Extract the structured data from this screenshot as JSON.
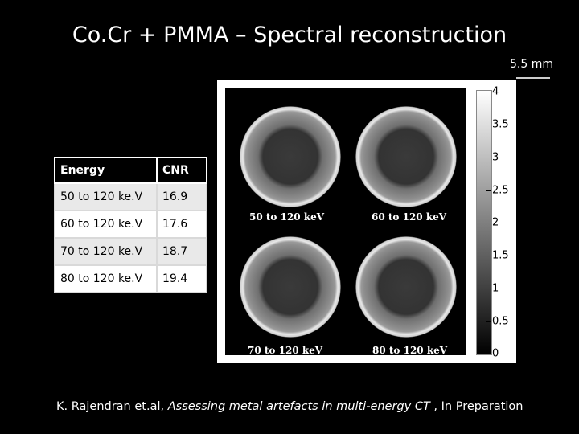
{
  "slide": {
    "title": "Co.Cr + PMMA – Spectral reconstruction",
    "scale_label": "5.5 mm"
  },
  "figure": {
    "labels": [
      "50 to 120 keV",
      "60 to 120 keV",
      "70 to 120 keV",
      "80 to 120 keV"
    ],
    "colorbar_ticks": [
      "4",
      "3.5",
      "3",
      "2.5",
      "2",
      "1.5",
      "1",
      "0.5",
      "0"
    ]
  },
  "table": {
    "headers": [
      "Energy",
      "CNR"
    ],
    "rows": [
      {
        "energy": "50 to 120 ke.V",
        "cnr": "16.9"
      },
      {
        "energy": "60 to 120 ke.V",
        "cnr": "17.6"
      },
      {
        "energy": "70 to 120 ke.V",
        "cnr": "18.7"
      },
      {
        "energy": "80 to 120 ke.V",
        "cnr": "19.4"
      }
    ]
  },
  "citation": {
    "authors": "K. Rajendran et.al, ",
    "work": "Assessing metal artefacts in multi-energy CT",
    "status": " ,  In Preparation"
  }
}
